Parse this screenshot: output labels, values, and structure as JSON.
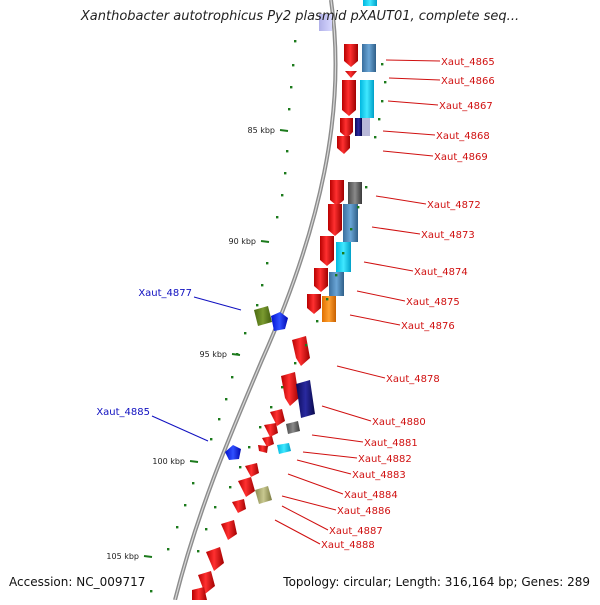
{
  "title": "Xanthobacter autotrophicus Py2 plasmid pXAUT01, complete seq...",
  "accession_label": "Accession:",
  "accession": "NC_009717",
  "topology_text": "Topology: circular; Length: 316,164 bp; Genes: 289",
  "colors": {
    "backbone": "#8c8c8c",
    "tick": "#1c7a1c",
    "label_right": "#d01010",
    "label_left": "#1010c0",
    "gene_red": "#e81010"
  },
  "kbp_markers": [
    {
      "label": "85 kbp"
    },
    {
      "label": "90 kbp"
    },
    {
      "label": "95 kbp"
    },
    {
      "label": "100 kbp"
    },
    {
      "label": "105 kbp"
    }
  ],
  "gene_labels_right": [
    "Xaut_4865",
    "Xaut_4866",
    "Xaut_4867",
    "Xaut_4868",
    "Xaut_4869",
    "Xaut_4872",
    "Xaut_4873",
    "Xaut_4874",
    "Xaut_4875",
    "Xaut_4876",
    "Xaut_4878",
    "Xaut_4880",
    "Xaut_4881",
    "Xaut_4882",
    "Xaut_4883",
    "Xaut_4884",
    "Xaut_4886",
    "Xaut_4887",
    "Xaut_4888"
  ],
  "gene_labels_left": [
    "Xaut_4877",
    "Xaut_4885"
  ]
}
